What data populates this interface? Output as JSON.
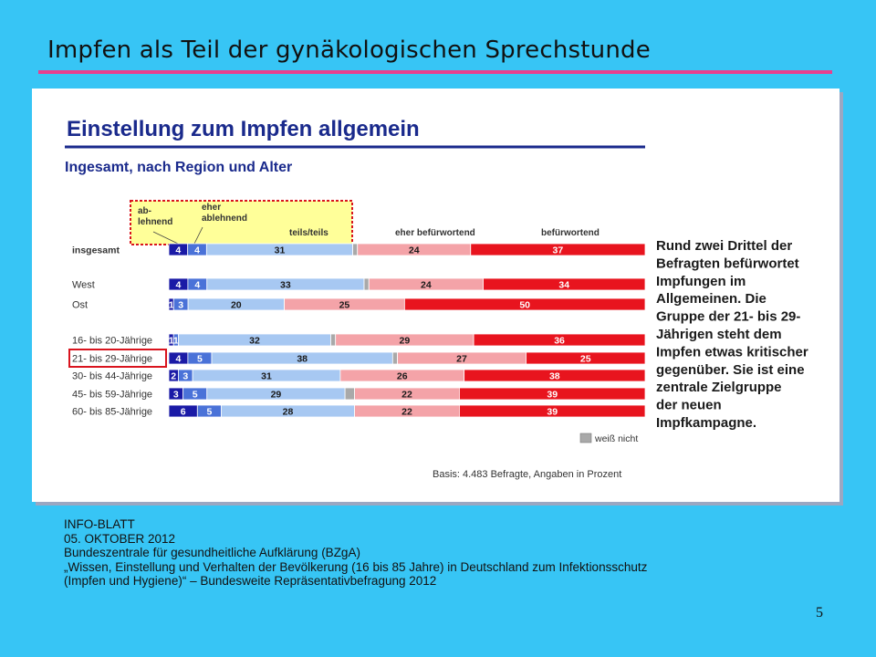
{
  "slide": {
    "title": "Impfen als Teil der gynäkologischen Sprechstunde",
    "page_number": "5"
  },
  "footer": {
    "line1": "INFO-BLATT",
    "line2": "05. OKTOBER 2012",
    "line3": "Bundeszentrale für gesundheitliche Aufklärung (BZgA)",
    "line4": "„Wissen, Einstellung und Verhalten der Bevölkerung (16 bis 85 Jahre) in Deutschland zum Infektionsschutz",
    "line5": "(Impfen und Hygiene)“ – Bundesweite Repräsentativbefragung 2012"
  },
  "colors": {
    "background": "#37c5f5",
    "title_rule": "#e8408e",
    "ablehnend": "#1a1aa6",
    "eher_ablehnend": "#4a72d8",
    "teils_teils": "#a7c8f2",
    "weiss_nicht": "#a9a9a9",
    "eher_befuerwortend": "#f4a3a8",
    "befuerwortend": "#e8141e",
    "highlight_box": "#ffff99",
    "highlight_border": "#d9141e"
  },
  "chart_data": {
    "type": "bar",
    "orientation": "horizontal",
    "stacked": true,
    "title": "Einstellung zum Impfen allgemein",
    "subtitle": "Ingesamt, nach Region und Alter",
    "categories": [
      "insgesamt",
      "West",
      "Ost",
      "16- bis 20-Jährige",
      "21- bis 29-Jährige",
      "30- bis 44-Jährige",
      "45- bis 59-Jährige",
      "60- bis 85-Jährige"
    ],
    "series": [
      {
        "name": "ab-lehnend",
        "values": [
          4,
          4,
          1,
          1,
          4,
          2,
          3,
          6
        ],
        "labels": [
          "4",
          "4",
          "1",
          "1",
          "4",
          "2",
          "3",
          "6"
        ]
      },
      {
        "name": "eher ablehnend",
        "values": [
          4,
          4,
          3,
          1,
          5,
          3,
          5,
          5
        ],
        "labels": [
          "4",
          "4",
          "3",
          "1",
          "5",
          "3",
          "5",
          "5"
        ]
      },
      {
        "name": "teils/teils",
        "values": [
          31,
          33,
          20,
          32,
          38,
          31,
          29,
          28
        ],
        "labels": [
          "31",
          "33",
          "20",
          "32",
          "38",
          "31",
          "29",
          "28"
        ]
      },
      {
        "name": "weiß nicht",
        "values": [
          1,
          1,
          0,
          1,
          1,
          0,
          2,
          0
        ],
        "labels": [
          "",
          "",
          "",
          "",
          "",
          "",
          "",
          ""
        ]
      },
      {
        "name": "eher befürwortend",
        "values": [
          24,
          24,
          25,
          29,
          27,
          26,
          22,
          22
        ],
        "labels": [
          "24",
          "24",
          "25",
          "29",
          "27",
          "26",
          "22",
          "22"
        ]
      },
      {
        "name": "befürwortend",
        "values": [
          37,
          34,
          50,
          36,
          25,
          38,
          39,
          39
        ],
        "labels": [
          "37",
          "34",
          "50",
          "36",
          "25",
          "38",
          "39",
          "39"
        ]
      }
    ],
    "legend_entries": {
      "ablehnend": "ab-\nlehnend",
      "eher_ablehnend": "eher\nablehnend",
      "teils_teils": "teils/teils",
      "eher_befuerwortend": "eher befürwortend",
      "befuerwortend": "befürwortend",
      "weiss_nicht": "weiß nicht"
    },
    "highlighted_category": "21- bis 29-Jährige",
    "annotation": "Rund zwei Drittel der Befragten befürwortet Impfungen im Allgemeinen. Die Gruppe der 21- bis 29-Jährigen steht dem Impfen etwas kritischer gegenüber. Sie ist eine zentrale Zielgruppe der neuen Impfkampagne.",
    "annotation_lines": [
      "Rund zwei Drittel der",
      "Befragten befürwortet",
      "Impfungen im",
      "Allgemeinen. Die",
      "Gruppe der 21- bis 29-",
      "Jährigen steht dem",
      "Impfen etwas kritischer",
      "gegenüber. Sie ist eine",
      "zentrale Zielgruppe",
      "der neuen",
      "Impfkampagne."
    ],
    "source_note": "Basis: 4.483 Befragte, Angaben in Prozent",
    "unit": "Prozent"
  }
}
